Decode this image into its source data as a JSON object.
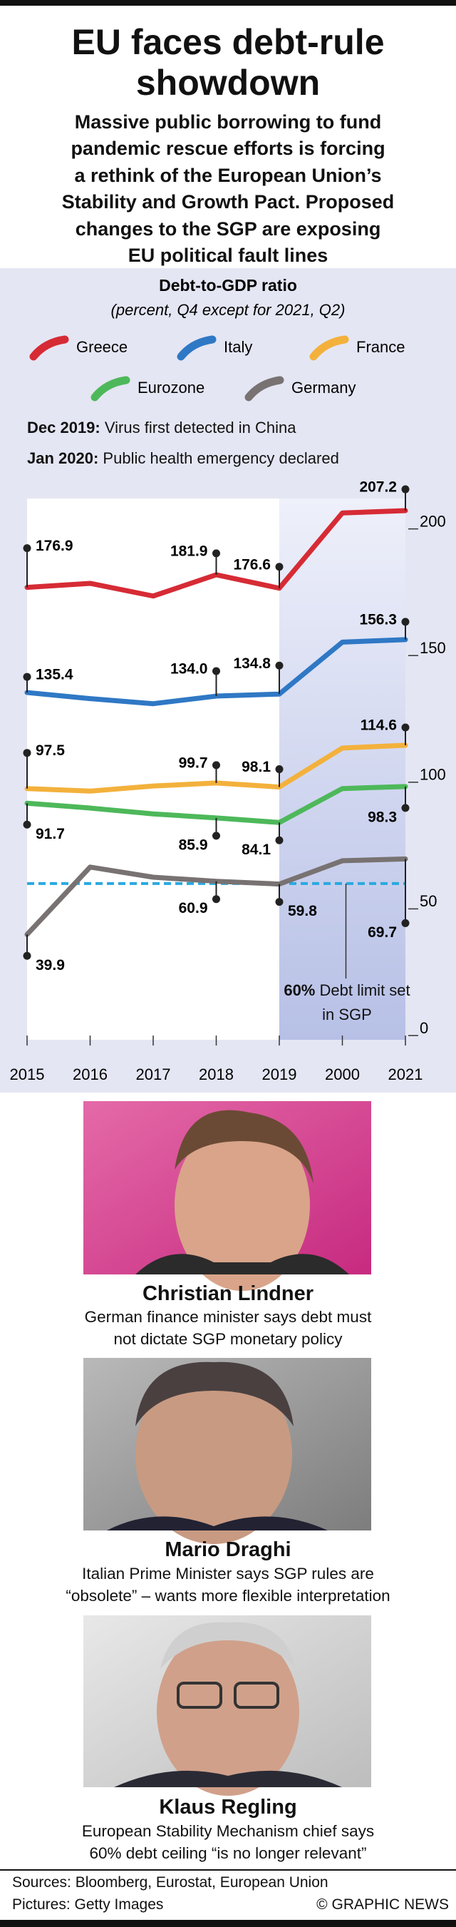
{
  "header": {
    "title": "EU faces debt-rule showdown",
    "subtitle_lines": [
      "Massive public borrowing to fund",
      "pandemic rescue efforts is forcing",
      "a rethink of the European Union’s",
      "Stability and Growth Pact. Proposed",
      "changes to the SGP are exposing",
      "EU political fault lines"
    ]
  },
  "chart_data": {
    "type": "line",
    "title": "Debt-to-GDP ratio",
    "subtitle": "(percent, Q4 except for 2021, Q2)",
    "categories": [
      "2015",
      "2016",
      "2017",
      "2018",
      "2019",
      "2000",
      "2021"
    ],
    "series": [
      {
        "name": "Greece",
        "color": "#d62b35",
        "values": [
          176.9,
          178.5,
          173.5,
          181.9,
          176.6,
          206.3,
          207.2
        ],
        "value_labels": [
          "176.9",
          null,
          null,
          "181.9",
          "176.6",
          null,
          "207.2"
        ]
      },
      {
        "name": "Italy",
        "color": "#2f78c5",
        "values": [
          135.4,
          133.0,
          131.0,
          134.0,
          134.8,
          155.3,
          156.3
        ],
        "value_labels": [
          "135.4",
          null,
          null,
          "134.0",
          "134.8",
          null,
          "156.3"
        ]
      },
      {
        "name": "France",
        "color": "#f3b13c",
        "values": [
          97.5,
          96.5,
          98.5,
          99.7,
          98.1,
          113.5,
          114.6
        ],
        "value_labels": [
          "97.5",
          null,
          null,
          "99.7",
          "98.1",
          null,
          "114.6"
        ]
      },
      {
        "name": "Eurozone",
        "color": "#4db85a",
        "values": [
          91.7,
          89.8,
          87.5,
          85.9,
          84.1,
          97.5,
          98.3
        ],
        "value_labels": [
          "91.7",
          null,
          null,
          "85.9",
          "84.1",
          null,
          "98.3"
        ]
      },
      {
        "name": "Germany",
        "color": "#787272",
        "values": [
          39.9,
          66.5,
          62.5,
          60.9,
          59.8,
          69.0,
          69.7
        ],
        "value_labels": [
          "39.9",
          null,
          null,
          "60.9",
          "59.8",
          null,
          "69.7"
        ]
      }
    ],
    "ylim": [
      0,
      212
    ],
    "yticks": [
      0,
      50,
      100,
      150,
      200
    ],
    "highlight_range": [
      4,
      6
    ],
    "annotations": [
      {
        "label": "Dec 2019:",
        "text": "Virus first detected in China"
      },
      {
        "label": "Jan 2020:",
        "text": "Public health emergency declared"
      }
    ],
    "reference_line": {
      "value": 60,
      "label": "60%",
      "text": "Debt limit set in SGP",
      "color": "#29a9e0"
    }
  },
  "profiles": [
    {
      "name": "Christian Lindner",
      "caption_lines": [
        "German finance minister says debt must",
        "not dictate SGP monetary policy"
      ]
    },
    {
      "name": "Mario Draghi",
      "caption_lines": [
        "Italian Prime Minister says SGP rules are",
        "“obsolete” – wants more flexible interpretation"
      ]
    },
    {
      "name": "Klaus Regling",
      "caption_lines": [
        "European Stability Mechanism chief says",
        "60% debt ceiling “is no longer relevant”"
      ]
    }
  ],
  "footer": {
    "sources": "Sources: Bloomberg, Eurostat, European Union",
    "pictures": "Pictures: Getty Images",
    "credit": "© GRAPHIC NEWS"
  }
}
